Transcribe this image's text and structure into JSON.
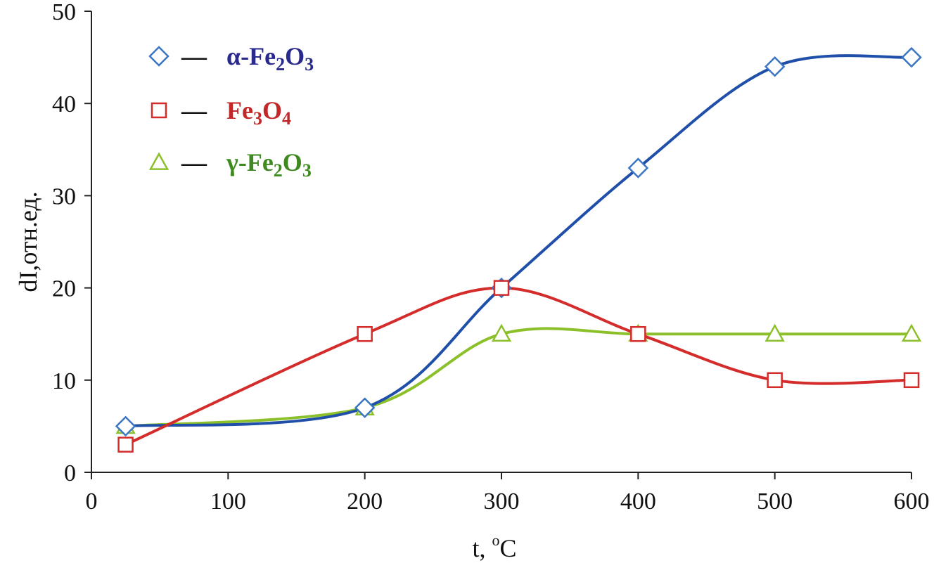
{
  "chart_data": {
    "type": "line",
    "xlabel": "t, °C",
    "xlabel_main": "t, ",
    "xlabel_degree": "o",
    "xlabel_unit": "C",
    "ylabel": "dI,отн.ед.",
    "xlim": [
      0,
      600
    ],
    "ylim": [
      0,
      50
    ],
    "xticks": [
      0,
      100,
      200,
      300,
      400,
      500,
      600
    ],
    "yticks": [
      0,
      10,
      20,
      30,
      40,
      50
    ],
    "grid": false,
    "legend_position": "top-left",
    "series": [
      {
        "name": "α-Fe2O3",
        "label_parts": [
          {
            "t": "α-Fe"
          },
          {
            "t": "2",
            "sub": true
          },
          {
            "t": "O"
          },
          {
            "t": "3",
            "sub": true
          }
        ],
        "color": "#1f4fa8",
        "marker": "diamond",
        "marker_color": "#3a75c4",
        "text_color": "#2a2a8c",
        "x": [
          25,
          200,
          300,
          400,
          500,
          600
        ],
        "values": [
          5,
          7,
          20,
          33,
          44,
          45
        ]
      },
      {
        "name": "Fe3O4",
        "label_parts": [
          {
            "t": "Fe"
          },
          {
            "t": "3",
            "sub": true
          },
          {
            "t": "O"
          },
          {
            "t": "4",
            "sub": true
          }
        ],
        "color": "#d42b2b",
        "marker": "square",
        "marker_color": "#d42b2b",
        "text_color": "#c0282a",
        "x": [
          25,
          200,
          300,
          400,
          500,
          600
        ],
        "values": [
          3,
          15,
          20,
          15,
          10,
          10
        ]
      },
      {
        "name": "γ-Fe2O3",
        "label_parts": [
          {
            "t": "γ-Fe"
          },
          {
            "t": "2",
            "sub": true
          },
          {
            "t": "O"
          },
          {
            "t": "3",
            "sub": true
          }
        ],
        "color": "#8cc02a",
        "marker": "triangle",
        "marker_color": "#8cc02a",
        "text_color": "#3e8a20",
        "x": [
          25,
          200,
          300,
          400,
          500,
          600
        ],
        "values": [
          5,
          7,
          15,
          15,
          15,
          15
        ]
      }
    ],
    "legend_dash": "—"
  }
}
